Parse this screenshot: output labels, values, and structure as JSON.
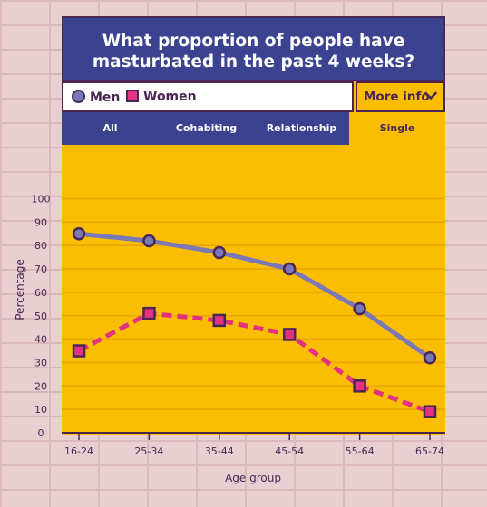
{
  "title": "What proportion of people have\nmasturbated in the past 4 weeks?",
  "legend": {
    "men": "Men",
    "women": "Women"
  },
  "more_info_label": "More info",
  "tabs": [
    {
      "label": "All",
      "active": false
    },
    {
      "label": "Cohabiting",
      "active": false
    },
    {
      "label": "Relationship",
      "active": false
    },
    {
      "label": "Single",
      "active": true
    }
  ],
  "colors": {
    "navy": "#3b428f",
    "yellow": "#fbbd00",
    "men_line": "#7b78b7",
    "women_line": "#e23380",
    "outline": "#4a2752"
  },
  "chart_data": {
    "type": "line",
    "categories": [
      "16-24",
      "25-34",
      "35-44",
      "45-54",
      "55-64",
      "65-74"
    ],
    "series": [
      {
        "name": "Men",
        "values": [
          85,
          82,
          77,
          70,
          53,
          32
        ]
      },
      {
        "name": "Women",
        "values": [
          35,
          51,
          48,
          42,
          20,
          9
        ]
      }
    ],
    "yticks": [
      0,
      10,
      20,
      30,
      40,
      50,
      60,
      70,
      80,
      90,
      100
    ],
    "ylim": [
      0,
      100
    ],
    "xlabel": "Age group",
    "ylabel": "Percentage",
    "grid": true
  }
}
